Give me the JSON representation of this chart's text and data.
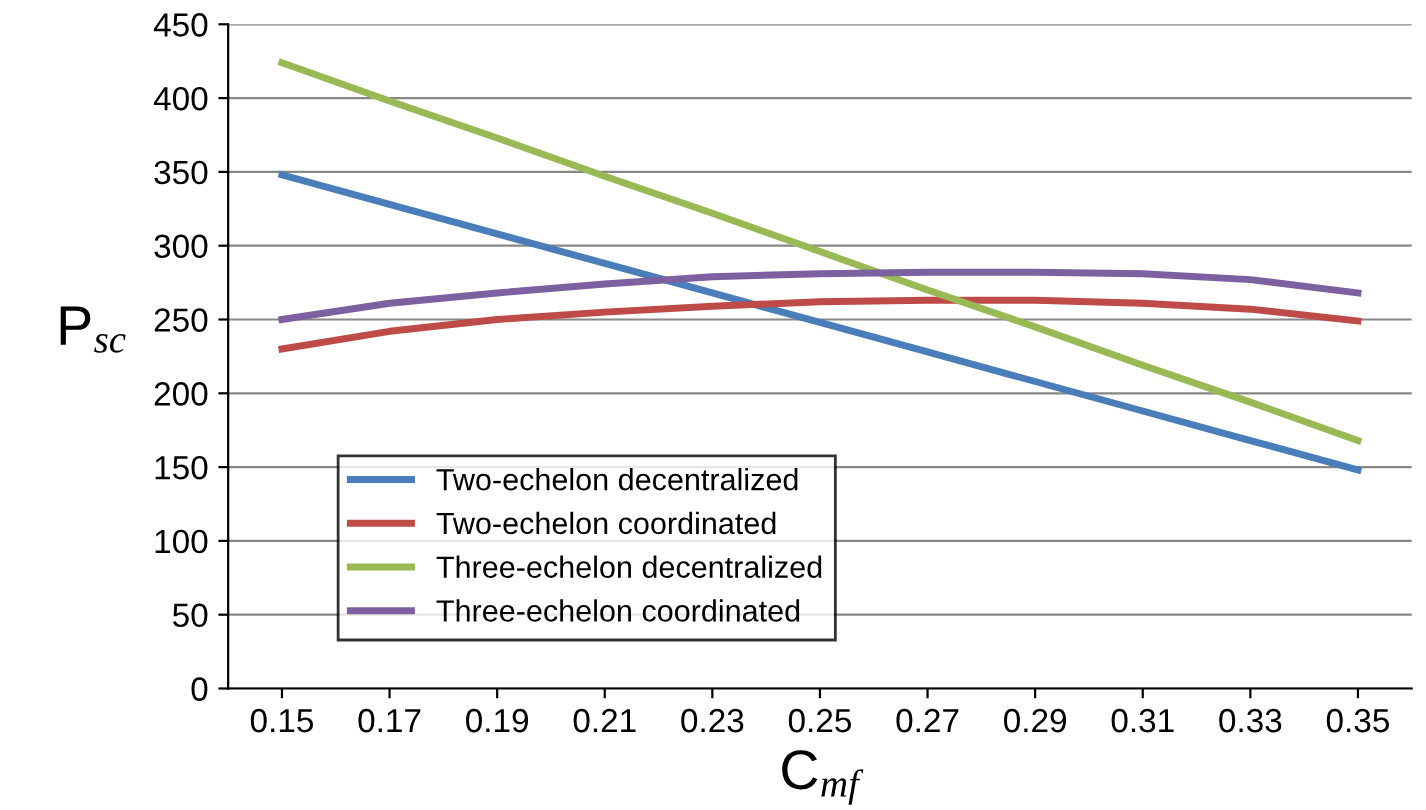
{
  "chart_data": {
    "type": "line",
    "xlabel": "C$_{mf}$",
    "ylabel": "P$_{sc}$",
    "categories": [
      "0.15",
      "0.17",
      "0.19",
      "0.21",
      "0.23",
      "0.25",
      "0.27",
      "0.29",
      "0.31",
      "0.33",
      "0.35"
    ],
    "ylim": [
      0,
      450
    ],
    "yticks": [
      0,
      50,
      100,
      150,
      200,
      250,
      300,
      350,
      400,
      450
    ],
    "grid": "y",
    "legend": "lower left",
    "marker": "none",
    "line_style": "solid",
    "series": [
      {
        "name": "Two-echelon decentralized",
        "color": "#4a7ebb",
        "values": [
          348,
          328,
          308,
          288,
          268,
          248,
          228,
          208,
          188,
          168,
          148
        ]
      },
      {
        "name": "Two-echelon coordinated",
        "color": "#be4b48",
        "values": [
          230,
          242,
          250,
          255,
          259,
          262,
          263,
          263,
          261,
          257,
          249
        ]
      },
      {
        "name": "Three-echelon decentralized",
        "color": "#98b954",
        "values": [
          424,
          398,
          373,
          347,
          322,
          296,
          270,
          245,
          219,
          194,
          168
        ]
      },
      {
        "name": "Three-echelon coordinated",
        "color": "#7d60a0",
        "values": [
          250,
          261,
          268,
          274,
          279,
          281,
          282,
          282,
          281,
          277,
          268
        ]
      }
    ]
  }
}
